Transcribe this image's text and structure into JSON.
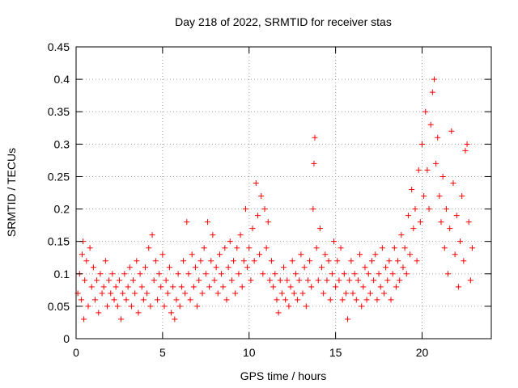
{
  "chart_data": {
    "type": "scatter",
    "title": "Day 218 of 2022, SRMTID for receiver stas",
    "xlabel": "GPS time / hours",
    "ylabel": "SRMTID / TECUs",
    "xlim": [
      0,
      24
    ],
    "ylim": [
      0,
      0.45
    ],
    "xticks": [
      0,
      5,
      10,
      15,
      20
    ],
    "xtick_labels": [
      "0",
      "5",
      "10",
      "15",
      "20"
    ],
    "yticks": [
      0,
      0.05,
      0.1,
      0.15,
      0.2,
      0.25,
      0.3,
      0.35,
      0.4,
      0.45
    ],
    "ytick_labels": [
      "0",
      "0.05",
      "0.1",
      "0.15",
      "0.2",
      "0.25",
      "0.3",
      "0.35",
      "0.4",
      "0.45"
    ],
    "grid": true,
    "marker": "plus",
    "series": [
      {
        "name": "SRMTID",
        "color": "#ff0000",
        "points": [
          [
            0.1,
            0.07
          ],
          [
            0.2,
            0.1
          ],
          [
            0.3,
            0.06
          ],
          [
            0.35,
            0.13
          ],
          [
            0.4,
            0.15
          ],
          [
            0.45,
            0.03
          ],
          [
            0.5,
            0.09
          ],
          [
            0.6,
            0.12
          ],
          [
            0.7,
            0.05
          ],
          [
            0.8,
            0.14
          ],
          [
            0.9,
            0.08
          ],
          [
            1.0,
            0.11
          ],
          [
            1.1,
            0.06
          ],
          [
            1.2,
            0.09
          ],
          [
            1.3,
            0.04
          ],
          [
            1.4,
            0.1
          ],
          [
            1.5,
            0.07
          ],
          [
            1.6,
            0.08
          ],
          [
            1.7,
            0.12
          ],
          [
            1.8,
            0.05
          ],
          [
            1.9,
            0.09
          ],
          [
            2.0,
            0.07
          ],
          [
            2.1,
            0.1
          ],
          [
            2.2,
            0.06
          ],
          [
            2.3,
            0.08
          ],
          [
            2.4,
            0.05
          ],
          [
            2.5,
            0.09
          ],
          [
            2.6,
            0.03
          ],
          [
            2.7,
            0.07
          ],
          [
            2.8,
            0.1
          ],
          [
            2.9,
            0.06
          ],
          [
            3.0,
            0.08
          ],
          [
            3.1,
            0.11
          ],
          [
            3.2,
            0.05
          ],
          [
            3.3,
            0.09
          ],
          [
            3.4,
            0.07
          ],
          [
            3.5,
            0.12
          ],
          [
            3.6,
            0.04
          ],
          [
            3.7,
            0.1
          ],
          [
            3.8,
            0.08
          ],
          [
            3.9,
            0.06
          ],
          [
            4.0,
            0.11
          ],
          [
            4.1,
            0.07
          ],
          [
            4.2,
            0.14
          ],
          [
            4.3,
            0.05
          ],
          [
            4.4,
            0.16
          ],
          [
            4.5,
            0.09
          ],
          [
            4.6,
            0.12
          ],
          [
            4.7,
            0.06
          ],
          [
            4.8,
            0.1
          ],
          [
            4.9,
            0.08
          ],
          [
            5.0,
            0.13
          ],
          [
            5.1,
            0.05
          ],
          [
            5.2,
            0.09
          ],
          [
            5.3,
            0.07
          ],
          [
            5.4,
            0.11
          ],
          [
            5.5,
            0.04
          ],
          [
            5.6,
            0.08
          ],
          [
            5.7,
            0.03
          ],
          [
            5.8,
            0.06
          ],
          [
            5.9,
            0.1
          ],
          [
            6.0,
            0.05
          ],
          [
            6.1,
            0.08
          ],
          [
            6.2,
            0.12
          ],
          [
            6.3,
            0.07
          ],
          [
            6.4,
            0.18
          ],
          [
            6.5,
            0.1
          ],
          [
            6.6,
            0.06
          ],
          [
            6.7,
            0.13
          ],
          [
            6.8,
            0.08
          ],
          [
            6.9,
            0.11
          ],
          [
            7.0,
            0.05
          ],
          [
            7.1,
            0.09
          ],
          [
            7.2,
            0.12
          ],
          [
            7.3,
            0.07
          ],
          [
            7.4,
            0.14
          ],
          [
            7.5,
            0.1
          ],
          [
            7.6,
            0.18
          ],
          [
            7.7,
            0.08
          ],
          [
            7.8,
            0.12
          ],
          [
            7.9,
            0.16
          ],
          [
            8.0,
            0.09
          ],
          [
            8.1,
            0.11
          ],
          [
            8.2,
            0.07
          ],
          [
            8.3,
            0.13
          ],
          [
            8.4,
            0.1
          ],
          [
            8.5,
            0.08
          ],
          [
            8.6,
            0.14
          ],
          [
            8.7,
            0.06
          ],
          [
            8.8,
            0.11
          ],
          [
            8.9,
            0.15
          ],
          [
            9.0,
            0.09
          ],
          [
            9.1,
            0.12
          ],
          [
            9.2,
            0.07
          ],
          [
            9.3,
            0.14
          ],
          [
            9.4,
            0.1
          ],
          [
            9.5,
            0.16
          ],
          [
            9.6,
            0.08
          ],
          [
            9.7,
            0.12
          ],
          [
            9.8,
            0.2
          ],
          [
            9.9,
            0.11
          ],
          [
            10.0,
            0.14
          ],
          [
            10.1,
            0.09
          ],
          [
            10.2,
            0.17
          ],
          [
            10.3,
            0.12
          ],
          [
            10.4,
            0.24
          ],
          [
            10.5,
            0.19
          ],
          [
            10.6,
            0.13
          ],
          [
            10.7,
            0.22
          ],
          [
            10.8,
            0.1
          ],
          [
            10.9,
            0.2
          ],
          [
            11.0,
            0.14
          ],
          [
            11.1,
            0.18
          ],
          [
            11.2,
            0.09
          ],
          [
            11.3,
            0.12
          ],
          [
            11.4,
            0.08
          ],
          [
            11.5,
            0.1
          ],
          [
            11.6,
            0.06
          ],
          [
            11.7,
            0.04
          ],
          [
            11.8,
            0.09
          ],
          [
            11.9,
            0.07
          ],
          [
            12.0,
            0.11
          ],
          [
            12.1,
            0.06
          ],
          [
            12.2,
            0.09
          ],
          [
            12.3,
            0.05
          ],
          [
            12.4,
            0.08
          ],
          [
            12.5,
            0.12
          ],
          [
            12.6,
            0.07
          ],
          [
            12.7,
            0.1
          ],
          [
            12.8,
            0.06
          ],
          [
            12.9,
            0.09
          ],
          [
            13.0,
            0.13
          ],
          [
            13.1,
            0.07
          ],
          [
            13.2,
            0.11
          ],
          [
            13.3,
            0.05
          ],
          [
            13.4,
            0.09
          ],
          [
            13.5,
            0.12
          ],
          [
            13.6,
            0.08
          ],
          [
            13.7,
            0.2
          ],
          [
            13.75,
            0.27
          ],
          [
            13.8,
            0.31
          ],
          [
            13.9,
            0.14
          ],
          [
            14.0,
            0.09
          ],
          [
            14.1,
            0.17
          ],
          [
            14.2,
            0.11
          ],
          [
            14.3,
            0.07
          ],
          [
            14.4,
            0.13
          ],
          [
            14.5,
            0.09
          ],
          [
            14.6,
            0.12
          ],
          [
            14.7,
            0.06
          ],
          [
            14.8,
            0.1
          ],
          [
            14.9,
            0.15
          ],
          [
            15.0,
            0.08
          ],
          [
            15.1,
            0.12
          ],
          [
            15.2,
            0.09
          ],
          [
            15.3,
            0.14
          ],
          [
            15.4,
            0.06
          ],
          [
            15.5,
            0.1
          ],
          [
            15.6,
            0.07
          ],
          [
            15.7,
            0.03
          ],
          [
            15.8,
            0.09
          ],
          [
            15.9,
            0.12
          ],
          [
            16.0,
            0.07
          ],
          [
            16.1,
            0.1
          ],
          [
            16.2,
            0.06
          ],
          [
            16.3,
            0.09
          ],
          [
            16.4,
            0.13
          ],
          [
            16.5,
            0.05
          ],
          [
            16.6,
            0.08
          ],
          [
            16.7,
            0.11
          ],
          [
            16.8,
            0.06
          ],
          [
            16.9,
            0.1
          ],
          [
            17.0,
            0.07
          ],
          [
            17.1,
            0.12
          ],
          [
            17.2,
            0.09
          ],
          [
            17.3,
            0.13
          ],
          [
            17.4,
            0.06
          ],
          [
            17.5,
            0.1
          ],
          [
            17.6,
            0.08
          ],
          [
            17.7,
            0.14
          ],
          [
            17.8,
            0.07
          ],
          [
            17.9,
            0.11
          ],
          [
            18.0,
            0.09
          ],
          [
            18.1,
            0.12
          ],
          [
            18.2,
            0.06
          ],
          [
            18.3,
            0.1
          ],
          [
            18.4,
            0.14
          ],
          [
            18.5,
            0.08
          ],
          [
            18.6,
            0.12
          ],
          [
            18.7,
            0.09
          ],
          [
            18.8,
            0.16
          ],
          [
            18.9,
            0.11
          ],
          [
            19.0,
            0.14
          ],
          [
            19.1,
            0.1
          ],
          [
            19.2,
            0.19
          ],
          [
            19.3,
            0.13
          ],
          [
            19.4,
            0.23
          ],
          [
            19.5,
            0.17
          ],
          [
            19.6,
            0.2
          ],
          [
            19.7,
            0.12
          ],
          [
            19.8,
            0.26
          ],
          [
            19.9,
            0.18
          ],
          [
            20.0,
            0.3
          ],
          [
            20.1,
            0.22
          ],
          [
            20.2,
            0.35
          ],
          [
            20.3,
            0.26
          ],
          [
            20.4,
            0.2
          ],
          [
            20.5,
            0.33
          ],
          [
            20.6,
            0.38
          ],
          [
            20.7,
            0.4
          ],
          [
            20.8,
            0.27
          ],
          [
            20.9,
            0.31
          ],
          [
            21.0,
            0.22
          ],
          [
            21.1,
            0.18
          ],
          [
            21.2,
            0.25
          ],
          [
            21.3,
            0.14
          ],
          [
            21.4,
            0.2
          ],
          [
            21.5,
            0.1
          ],
          [
            21.6,
            0.17
          ],
          [
            21.7,
            0.32
          ],
          [
            21.8,
            0.24
          ],
          [
            21.9,
            0.13
          ],
          [
            22.0,
            0.19
          ],
          [
            22.1,
            0.08
          ],
          [
            22.2,
            0.15
          ],
          [
            22.3,
            0.22
          ],
          [
            22.4,
            0.12
          ],
          [
            22.5,
            0.29
          ],
          [
            22.6,
            0.3
          ],
          [
            22.7,
            0.18
          ],
          [
            22.8,
            0.09
          ],
          [
            22.9,
            0.14
          ]
        ]
      }
    ]
  }
}
